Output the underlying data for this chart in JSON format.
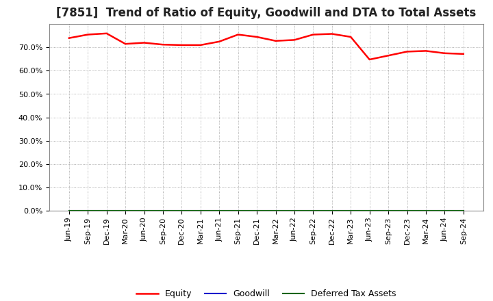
{
  "title": "[7851]  Trend of Ratio of Equity, Goodwill and DTA to Total Assets",
  "x_labels": [
    "Jun-19",
    "Sep-19",
    "Dec-19",
    "Mar-20",
    "Jun-20",
    "Sep-20",
    "Dec-20",
    "Mar-21",
    "Jun-21",
    "Sep-21",
    "Dec-21",
    "Mar-22",
    "Jun-22",
    "Sep-22",
    "Dec-22",
    "Mar-23",
    "Jun-23",
    "Sep-23",
    "Dec-23",
    "Mar-24",
    "Jun-24",
    "Sep-24"
  ],
  "equity": [
    74.0,
    75.5,
    76.0,
    71.5,
    72.0,
    71.2,
    71.0,
    71.0,
    72.5,
    75.5,
    74.5,
    72.8,
    73.2,
    75.5,
    75.8,
    74.5,
    64.8,
    66.5,
    68.2,
    68.5,
    67.5,
    67.2
  ],
  "goodwill": [
    0.0,
    0.0,
    0.0,
    0.0,
    0.0,
    0.0,
    0.0,
    0.0,
    0.0,
    0.0,
    0.0,
    0.0,
    0.0,
    0.0,
    0.0,
    0.0,
    0.0,
    0.0,
    0.0,
    0.0,
    0.0,
    0.0
  ],
  "dta": [
    0.0,
    0.0,
    0.0,
    0.0,
    0.0,
    0.0,
    0.0,
    0.0,
    0.0,
    0.0,
    0.0,
    0.0,
    0.0,
    0.0,
    0.0,
    0.0,
    0.0,
    0.0,
    0.0,
    0.0,
    0.0,
    0.0
  ],
  "equity_color": "#ff0000",
  "goodwill_color": "#0000cc",
  "dta_color": "#006400",
  "ylim": [
    0,
    80
  ],
  "yticks": [
    0,
    10,
    20,
    30,
    40,
    50,
    60,
    70
  ],
  "ytick_labels": [
    "0.0%",
    "10.0%",
    "20.0%",
    "30.0%",
    "40.0%",
    "50.0%",
    "60.0%",
    "70.0%"
  ],
  "background_color": "#ffffff",
  "plot_bg_color": "#ffffff",
  "grid_color": "#999999",
  "legend_labels": [
    "Equity",
    "Goodwill",
    "Deferred Tax Assets"
  ],
  "title_fontsize": 12,
  "tick_fontsize": 8,
  "legend_fontsize": 9
}
